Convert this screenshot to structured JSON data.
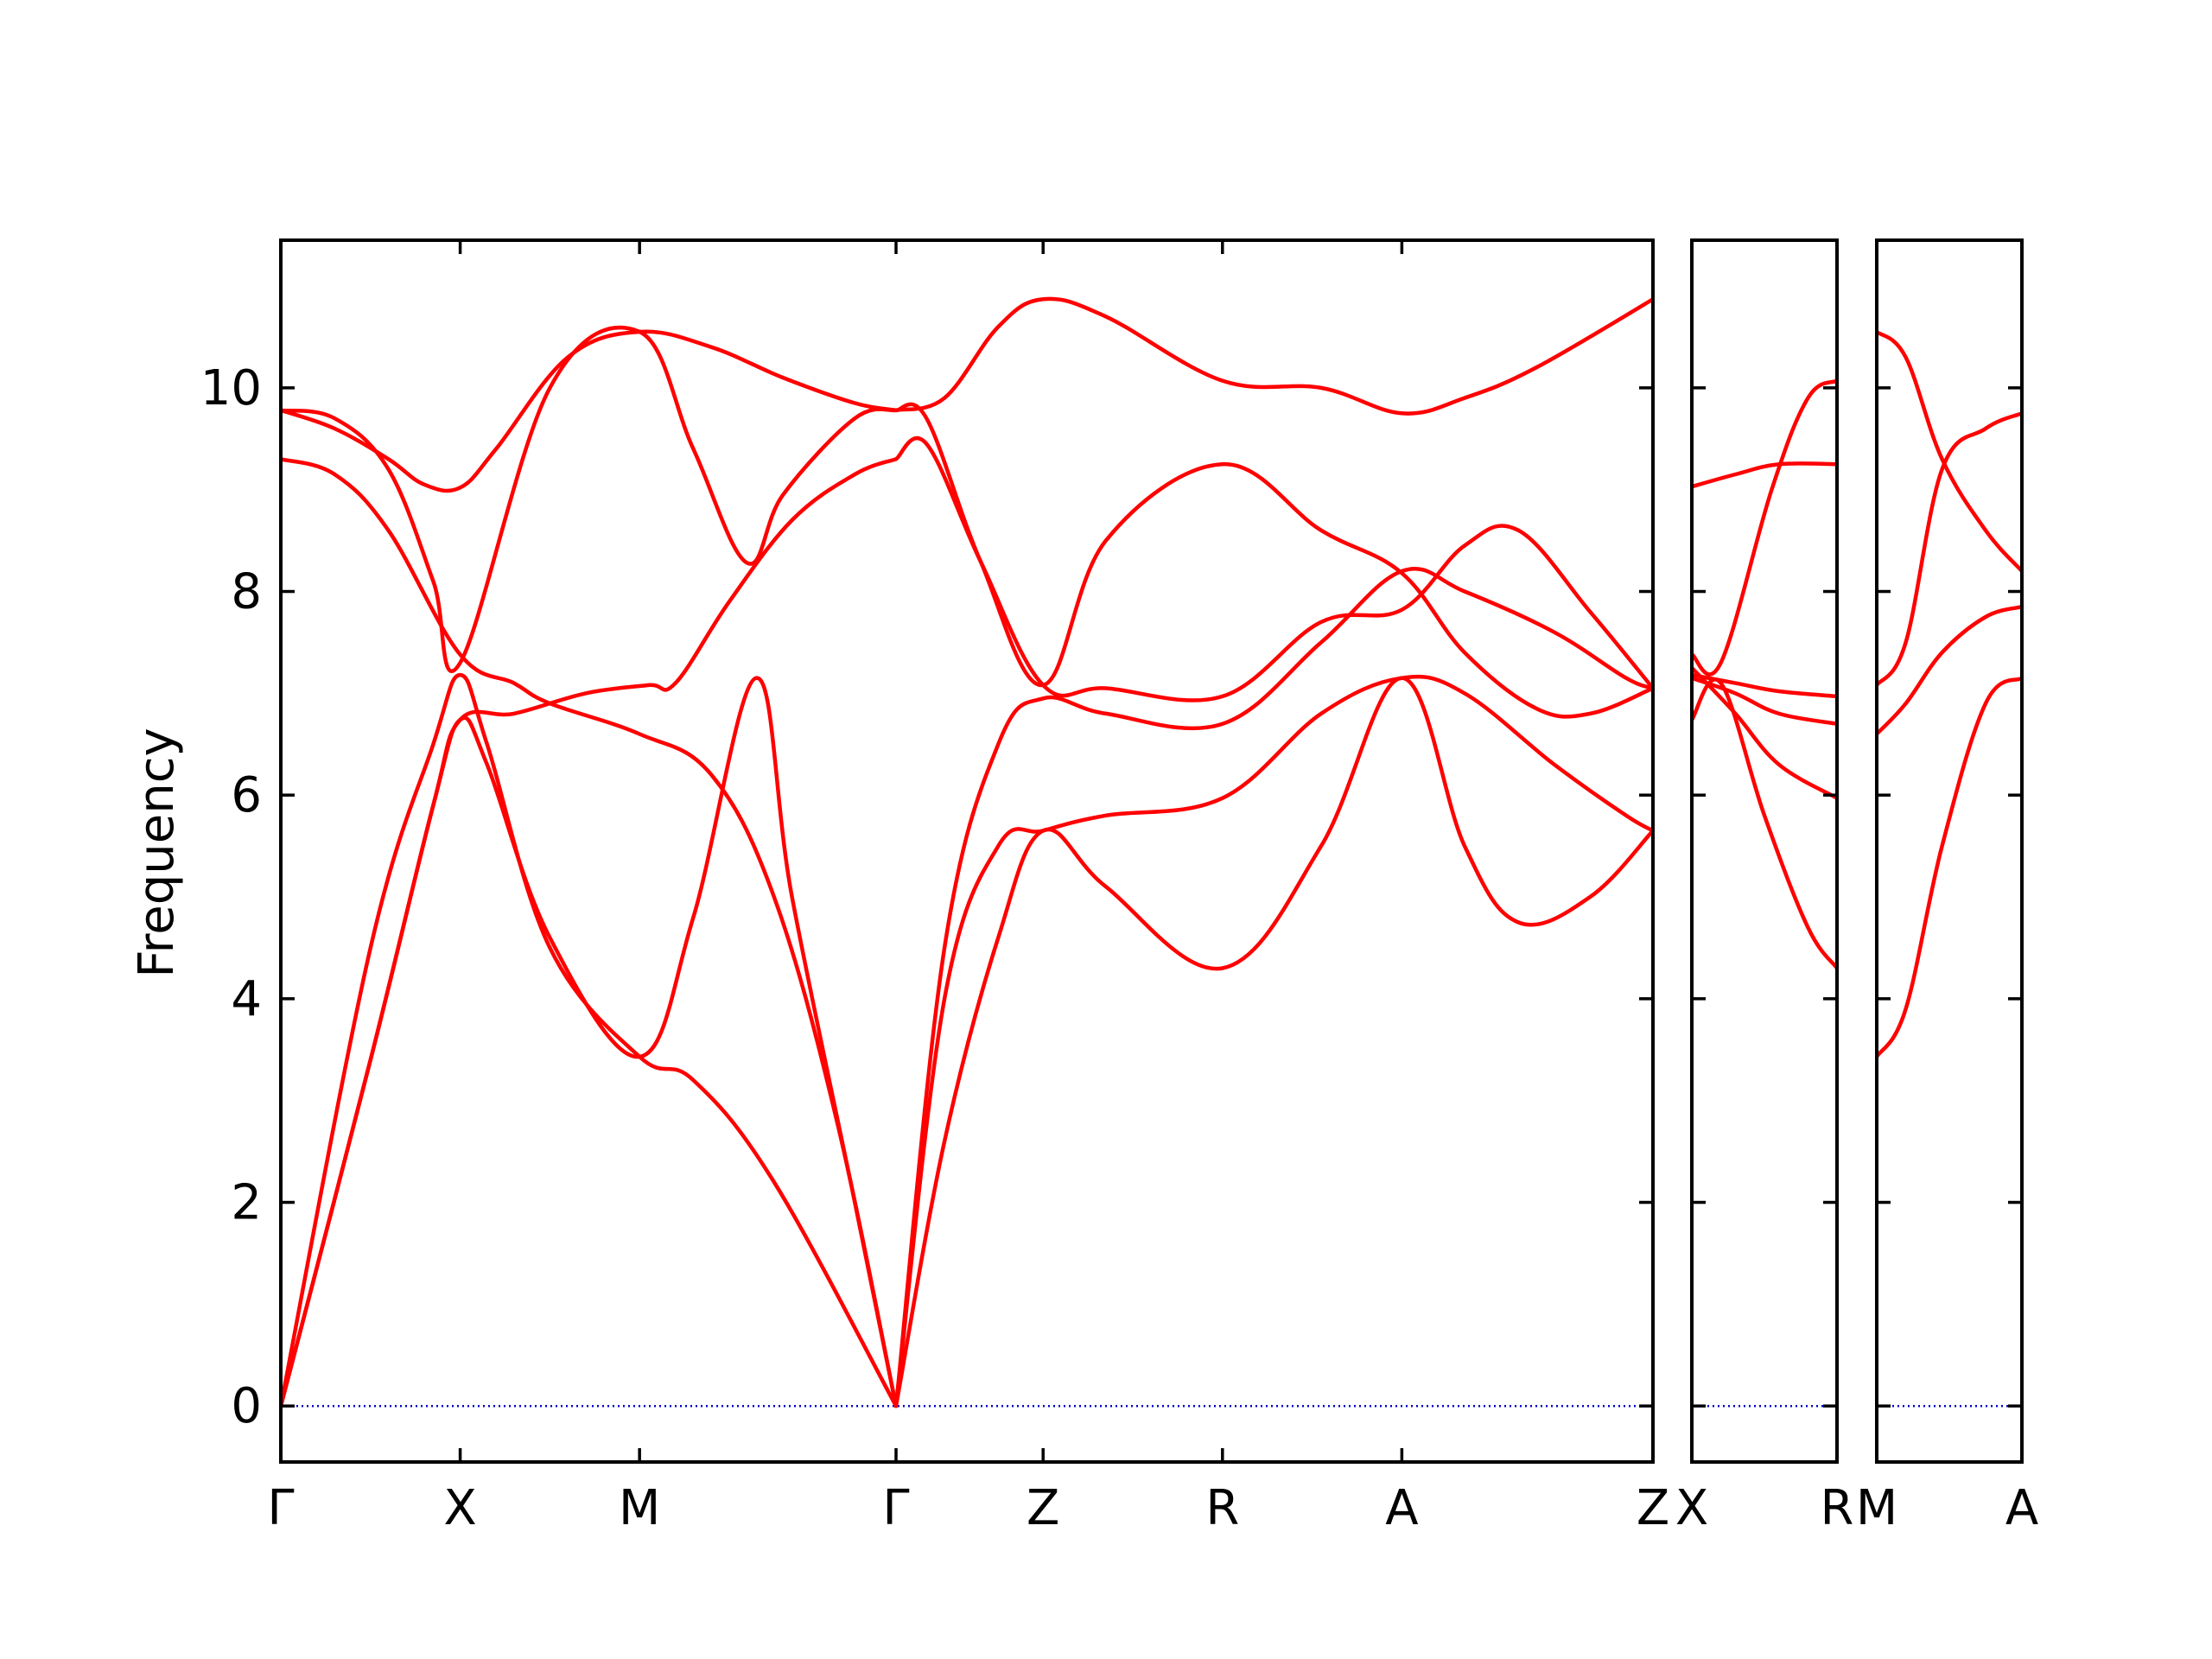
{
  "colors": {
    "band": "#ff0000",
    "zero_line": "#0000cc",
    "frame": "#000000",
    "background": "#ffffff"
  },
  "chart_data": {
    "type": "line",
    "title": "",
    "xlabel": "",
    "ylabel": "Frequency",
    "ylim": [
      -0.55,
      11.45
    ],
    "yticks": [
      0,
      2,
      4,
      6,
      8,
      10
    ],
    "ytick_labels": [
      "0",
      "2",
      "4",
      "6",
      "8",
      "10"
    ],
    "grid": false,
    "legend": "none",
    "zero_line": {
      "y": 0,
      "style": "dotted"
    },
    "panels": [
      {
        "path": [
          "Γ",
          "X",
          "M",
          "Γ",
          "Z",
          "R",
          "A",
          "Z"
        ],
        "x_ticks": [
          0,
          1,
          2,
          3.43,
          4.25,
          5.25,
          6.25,
          7.65
        ],
        "xlim": [
          0,
          7.65
        ],
        "bands": [
          [
            [
              0,
              0
            ],
            [
              0.5,
              4.5
            ],
            [
              0.85,
              6.5
            ],
            [
              1,
              7.18
            ],
            [
              1.15,
              6.5
            ],
            [
              1.5,
              4.5
            ],
            [
              2,
              3.43
            ],
            [
              2.3,
              3.2
            ],
            [
              2.75,
              2.2
            ],
            [
              3.43,
              0
            ]
          ],
          [
            [
              0,
              0
            ],
            [
              0.5,
              3.4
            ],
            [
              0.85,
              5.9
            ],
            [
              1,
              6.74
            ],
            [
              1.3,
              6.8
            ],
            [
              1.7,
              7.0
            ],
            [
              2.05,
              7.08
            ],
            [
              2.2,
              7.1
            ],
            [
              2.5,
              7.9
            ],
            [
              2.85,
              8.7
            ],
            [
              3.2,
              9.15
            ],
            [
              3.43,
              9.3
            ]
          ],
          [
            [
              0,
              0
            ],
            [
              0.5,
              3.4
            ],
            [
              0.85,
              5.9
            ],
            [
              1,
              6.74
            ],
            [
              1.15,
              6.3
            ],
            [
              1.5,
              4.6
            ],
            [
              2,
              3.43
            ],
            [
              2.3,
              4.8
            ],
            [
              2.65,
              7.15
            ],
            [
              2.85,
              5.0
            ],
            [
              3.2,
              2.0
            ],
            [
              3.43,
              0
            ]
          ],
          [
            [
              0,
              9.3
            ],
            [
              0.3,
              9.15
            ],
            [
              0.6,
              8.6
            ],
            [
              1,
              7.38
            ],
            [
              1.3,
              7.1
            ],
            [
              1.5,
              6.9
            ],
            [
              2,
              6.6
            ],
            [
              2.4,
              6.2
            ],
            [
              2.75,
              5.0
            ],
            [
              3.1,
              2.8
            ],
            [
              3.43,
              0
            ]
          ],
          [
            [
              0,
              9.78
            ],
            [
              0.3,
              9.7
            ],
            [
              0.6,
              9.2
            ],
            [
              0.85,
              8.1
            ],
            [
              1,
              7.3
            ],
            [
              1.5,
              10.0
            ],
            [
              2,
              10.55
            ],
            [
              2.3,
              9.4
            ],
            [
              2.6,
              8.28
            ],
            [
              2.8,
              8.95
            ],
            [
              3.2,
              9.7
            ],
            [
              3.43,
              9.78
            ]
          ],
          [
            [
              0,
              9.78
            ],
            [
              0.3,
              9.6
            ],
            [
              0.6,
              9.3
            ],
            [
              0.8,
              9.05
            ],
            [
              1,
              9.02
            ],
            [
              1.2,
              9.4
            ],
            [
              1.6,
              10.3
            ],
            [
              2,
              10.55
            ],
            [
              2.4,
              10.4
            ],
            [
              2.8,
              10.1
            ],
            [
              3.2,
              9.85
            ],
            [
              3.43,
              9.78
            ]
          ],
          [
            [
              3.43,
              0
            ],
            [
              3.7,
              4.0
            ],
            [
              4.0,
              5.5
            ],
            [
              4.25,
              5.65
            ],
            [
              4.6,
              5.8
            ],
            [
              5.25,
              5.97
            ],
            [
              5.8,
              6.8
            ],
            [
              6.25,
              7.15
            ],
            [
              6.6,
              7.0
            ],
            [
              7.1,
              6.3
            ],
            [
              7.5,
              5.8
            ],
            [
              7.65,
              5.65
            ]
          ],
          [
            [
              3.43,
              0
            ],
            [
              3.7,
              2.6
            ],
            [
              4.0,
              4.6
            ],
            [
              4.25,
              5.65
            ],
            [
              4.6,
              5.1
            ],
            [
              5.25,
              4.3
            ],
            [
              5.8,
              5.5
            ],
            [
              6.25,
              7.15
            ],
            [
              6.6,
              5.5
            ],
            [
              6.9,
              4.75
            ],
            [
              7.3,
              5.0
            ],
            [
              7.65,
              5.65
            ]
          ],
          [
            [
              3.43,
              0
            ],
            [
              3.7,
              4.5
            ],
            [
              4.0,
              6.5
            ],
            [
              4.25,
              6.95
            ],
            [
              4.6,
              6.8
            ],
            [
              5.25,
              6.7
            ],
            [
              5.8,
              7.5
            ],
            [
              6.25,
              8.2
            ],
            [
              6.6,
              8.0
            ],
            [
              7.1,
              7.6
            ],
            [
              7.5,
              7.15
            ],
            [
              7.65,
              7.05
            ]
          ],
          [
            [
              3.43,
              9.3
            ],
            [
              3.6,
              9.45
            ],
            [
              3.9,
              8.3
            ],
            [
              4.25,
              7.08
            ],
            [
              4.6,
              7.05
            ],
            [
              5.25,
              6.97
            ],
            [
              5.8,
              7.7
            ],
            [
              6.25,
              7.82
            ],
            [
              6.6,
              8.45
            ],
            [
              6.9,
              8.6
            ],
            [
              7.3,
              7.8
            ],
            [
              7.65,
              7.05
            ]
          ],
          [
            [
              3.43,
              9.78
            ],
            [
              3.6,
              9.7
            ],
            [
              3.9,
              8.3
            ],
            [
              4.25,
              7.08
            ],
            [
              4.6,
              8.5
            ],
            [
              5.25,
              9.25
            ],
            [
              5.8,
              8.6
            ],
            [
              6.25,
              8.18
            ],
            [
              6.6,
              7.4
            ],
            [
              7.0,
              6.85
            ],
            [
              7.3,
              6.8
            ],
            [
              7.65,
              7.05
            ]
          ],
          [
            [
              3.43,
              9.78
            ],
            [
              3.7,
              9.9
            ],
            [
              4.0,
              10.6
            ],
            [
              4.25,
              10.87
            ],
            [
              4.6,
              10.7
            ],
            [
              5.25,
              10.07
            ],
            [
              5.8,
              10.0
            ],
            [
              6.25,
              9.75
            ],
            [
              6.6,
              9.9
            ],
            [
              7.0,
              10.2
            ],
            [
              7.65,
              10.87
            ]
          ]
        ]
      },
      {
        "path": [
          "X",
          "R"
        ],
        "x_ticks": [
          0,
          1
        ],
        "xlim": [
          0,
          1
        ],
        "bands": [
          [
            [
              0,
              9.03
            ],
            [
              0.3,
              9.15
            ],
            [
              0.6,
              9.25
            ],
            [
              1,
              9.25
            ]
          ],
          [
            [
              0,
              7.38
            ],
            [
              0.2,
              7.3
            ],
            [
              0.55,
              9.0
            ],
            [
              0.8,
              9.9
            ],
            [
              1,
              10.07
            ]
          ],
          [
            [
              0,
              7.18
            ],
            [
              0.3,
              7.1
            ],
            [
              0.6,
              7.02
            ],
            [
              1,
              6.97
            ]
          ],
          [
            [
              0,
              7.15
            ],
            [
              0.3,
              7.0
            ],
            [
              0.6,
              6.8
            ],
            [
              1,
              6.7
            ]
          ],
          [
            [
              0,
              7.25
            ],
            [
              0.3,
              6.8
            ],
            [
              0.6,
              6.3
            ],
            [
              1,
              5.97
            ]
          ],
          [
            [
              0,
              6.74
            ],
            [
              0.2,
              7.1
            ],
            [
              0.5,
              5.8
            ],
            [
              0.8,
              4.7
            ],
            [
              1,
              4.3
            ]
          ]
        ]
      },
      {
        "path": [
          "M",
          "A"
        ],
        "x_ticks": [
          0,
          1
        ],
        "xlim": [
          0,
          1
        ],
        "bands": [
          [
            [
              0,
              10.55
            ],
            [
              0.2,
              10.3
            ],
            [
              0.45,
              9.3
            ],
            [
              0.75,
              8.6
            ],
            [
              1,
              8.2
            ]
          ],
          [
            [
              0,
              7.08
            ],
            [
              0.2,
              7.5
            ],
            [
              0.45,
              9.2
            ],
            [
              0.75,
              9.6
            ],
            [
              1,
              9.75
            ]
          ],
          [
            [
              0,
              6.6
            ],
            [
              0.2,
              6.9
            ],
            [
              0.45,
              7.4
            ],
            [
              0.75,
              7.75
            ],
            [
              1,
              7.85
            ]
          ],
          [
            [
              0,
              3.43
            ],
            [
              0.2,
              3.9
            ],
            [
              0.45,
              5.5
            ],
            [
              0.75,
              6.9
            ],
            [
              1,
              7.15
            ]
          ]
        ]
      }
    ]
  }
}
